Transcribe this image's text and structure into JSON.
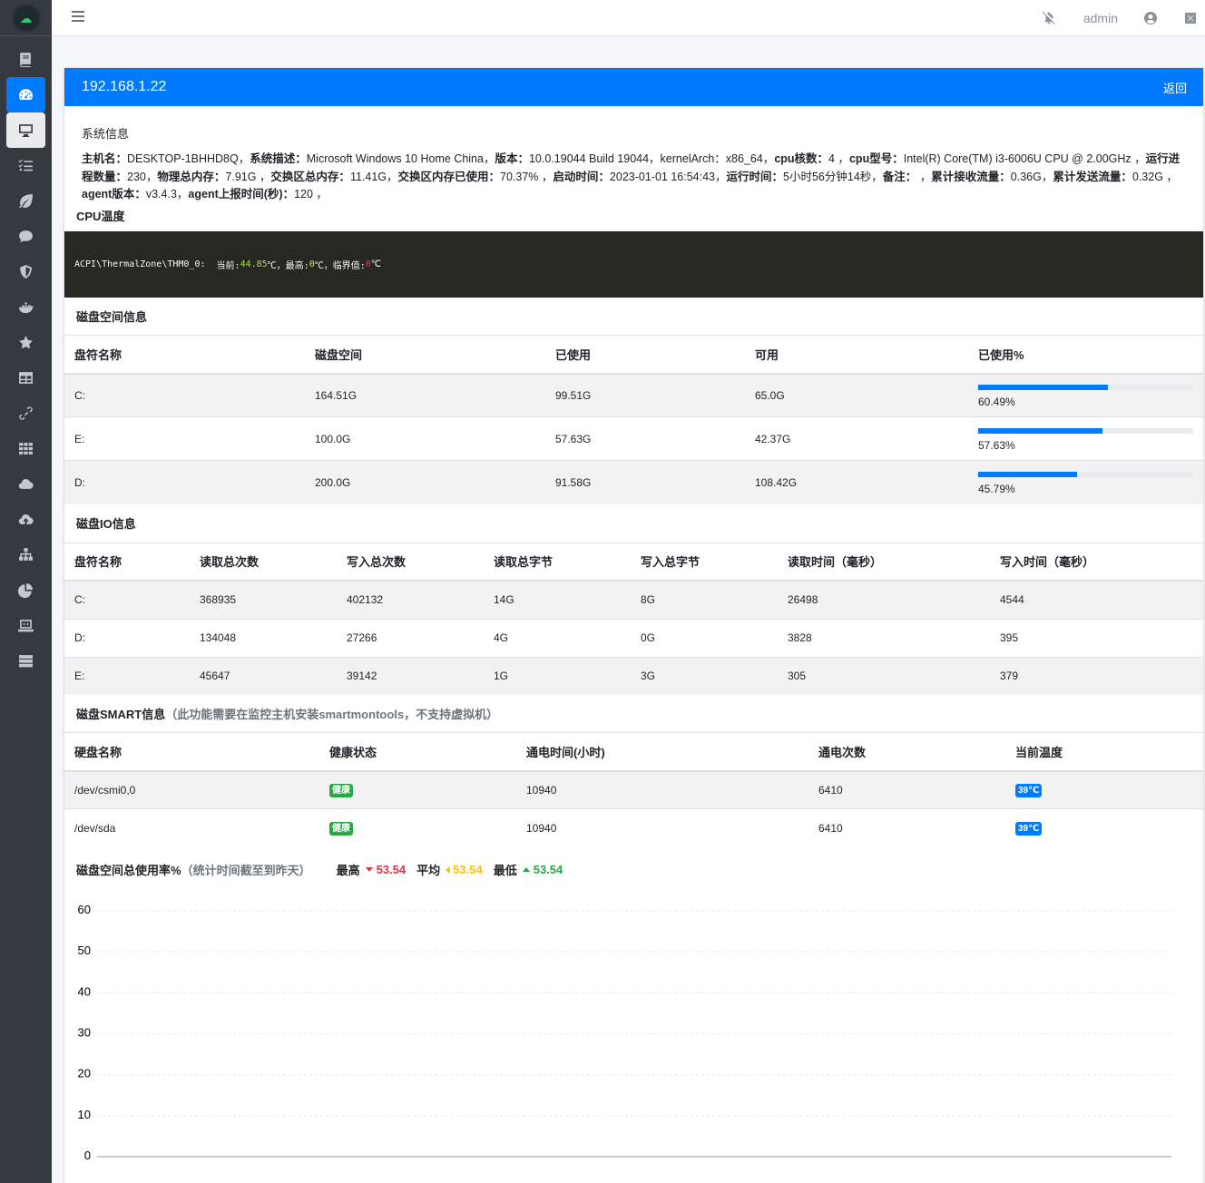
{
  "topbar": {
    "user": "admin"
  },
  "sidebar": {
    "items": [
      {
        "icon": "book-icon"
      },
      {
        "icon": "dashboard-icon"
      },
      {
        "icon": "desktop-icon"
      },
      {
        "icon": "tasks-icon"
      },
      {
        "icon": "leaf-icon"
      },
      {
        "icon": "comment-icon"
      },
      {
        "icon": "shield-icon"
      },
      {
        "icon": "docker-icon"
      },
      {
        "icon": "star-icon"
      },
      {
        "icon": "table-icon"
      },
      {
        "icon": "link-icon"
      },
      {
        "icon": "grid-icon"
      },
      {
        "icon": "cloud-icon"
      },
      {
        "icon": "cloud-upload-icon"
      },
      {
        "icon": "sitemap-icon"
      },
      {
        "icon": "pie-chart-icon"
      },
      {
        "icon": "laptop-code-icon"
      },
      {
        "icon": "server-icon"
      }
    ]
  },
  "header": {
    "ip": "192.168.1.22",
    "back": "返回"
  },
  "system": {
    "title": "系统信息",
    "hostname_label": "主机名：",
    "hostname": "DESKTOP-1BHHD8Q，",
    "desc_label": "系统描述：",
    "desc": "Microsoft Windows 10 Home China，",
    "version_label": "版本：",
    "version": "10.0.19044 Build 19044，",
    "kernel": "kernelArch：x86_64，",
    "cores_label": "cpu核数：",
    "cores": "4 ，",
    "model_label": "cpu型号：",
    "model": "Intel(R) Core(TM) i3-6006U CPU @ 2.00GHz ，",
    "procs_label": "运行进程数量：",
    "procs": "230，",
    "mem_label": "物理总内存：",
    "mem": "7.91G ，",
    "swap_label": "交换区总内存：",
    "swap": "11.41G，",
    "swap_used_label": "交换区内存已使用：",
    "swap_used": "70.37% ，",
    "boot_label": "启动时间：",
    "boot": "2023-01-01 16:54:43，",
    "uptime_label": "运行时间：",
    "uptime": "5小时56分钟14秒，",
    "remark_label": "备注：",
    "remark": " ，",
    "rx_label": "累计接收流量：",
    "rx": "0.36G，",
    "tx_label": "累计发送流量：",
    "tx": "0.32G ，",
    "agent_label": "agent版本：",
    "agent": "v3.4.3，",
    "report_label": "agent上报时间(秒)：",
    "report": "120 ，"
  },
  "cpu_temp": {
    "title": "CPU温度",
    "zone": "ACPI\\ThermalZone\\THM0_0:",
    "cur_label": "  当前:",
    "cur": "44.85",
    "max_label": "℃，最高:",
    "max": "0",
    "crit_label": "℃，临界值:",
    "crit": "0",
    "unit": "℃"
  },
  "disk_space": {
    "title": "磁盘空间信息",
    "headers": [
      "盘符名称",
      "磁盘空间",
      "已使用",
      "可用",
      "已使用%"
    ],
    "rows": [
      {
        "name": "C:",
        "size": "164.51G",
        "used": "99.51G",
        "free": "65.0G",
        "pct": "60.49%",
        "pct_value": 60.49
      },
      {
        "name": "E:",
        "size": "100.0G",
        "used": "57.63G",
        "free": "42.37G",
        "pct": "57.63%",
        "pct_value": 57.63
      },
      {
        "name": "D:",
        "size": "200.0G",
        "used": "91.58G",
        "free": "108.42G",
        "pct": "45.79%",
        "pct_value": 45.79
      }
    ]
  },
  "disk_io": {
    "title": "磁盘IO信息",
    "headers": [
      "盘符名称",
      "读取总次数",
      "写入总次数",
      "读取总字节",
      "写入总字节",
      "读取时间（毫秒）",
      "写入时间（毫秒）"
    ],
    "rows": [
      [
        "C:",
        "368935",
        "402132",
        "14G",
        "8G",
        "26498",
        "4544"
      ],
      [
        "D:",
        "134048",
        "27266",
        "4G",
        "0G",
        "3828",
        "395"
      ],
      [
        "E:",
        "45647",
        "39142",
        "1G",
        "3G",
        "305",
        "379"
      ]
    ]
  },
  "smart": {
    "title": "磁盘SMART信息",
    "note": "（此功能需要在监控主机安装smartmontools，不支持虚拟机）",
    "headers": [
      "硬盘名称",
      "健康状态",
      "通电时间(小时)",
      "通电次数",
      "当前温度"
    ],
    "rows": [
      {
        "name": "/dev/csmi0,0",
        "health": "健康",
        "hours": "10940",
        "count": "6410",
        "temp": "39℃"
      },
      {
        "name": "/dev/sda",
        "health": "健康",
        "hours": "10940",
        "count": "6410",
        "temp": "39℃"
      }
    ]
  },
  "usage": {
    "title": "磁盘空间总使用率%",
    "note": "（统计时间截至到昨天）",
    "max_label": "最高",
    "max": "53.54",
    "avg_label": "平均",
    "avg": "53.54",
    "min_label": "最低",
    "min": "53.54"
  },
  "chart_data": {
    "type": "line",
    "title": "",
    "xlabel": "",
    "ylabel": "",
    "ylim": [
      0,
      60
    ],
    "yticks": [
      "60",
      "50",
      "40",
      "30",
      "20",
      "10",
      "0"
    ],
    "grid": true,
    "series": []
  }
}
